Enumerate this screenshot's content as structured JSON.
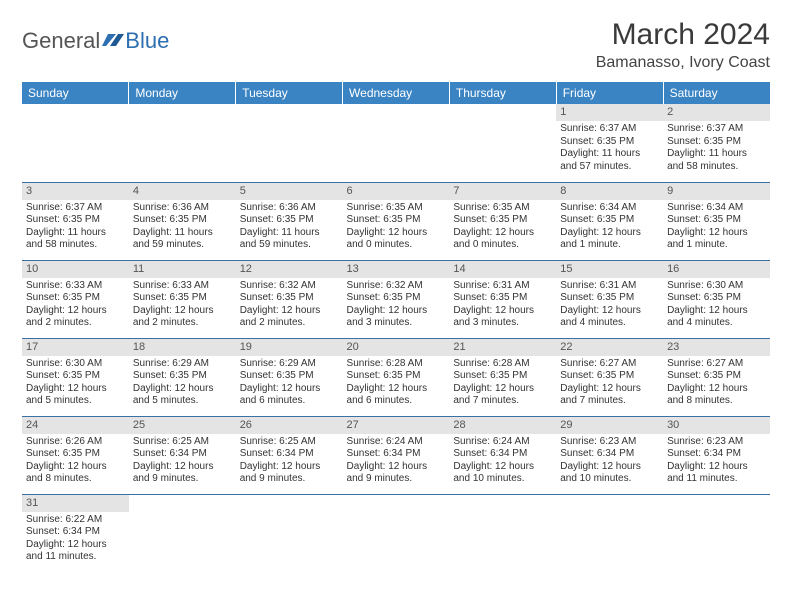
{
  "logo": {
    "general": "General",
    "blue": "Blue"
  },
  "title": "March 2024",
  "location": "Bamanasso, Ivory Coast",
  "columns": [
    "Sunday",
    "Monday",
    "Tuesday",
    "Wednesday",
    "Thursday",
    "Friday",
    "Saturday"
  ],
  "colors": {
    "header_bg": "#3b84c4",
    "header_text": "#ffffff",
    "daynum_bg": "#e4e4e4",
    "row_border": "#3b6fa8",
    "logo_blue": "#2d6fb0"
  },
  "weeks": [
    [
      null,
      null,
      null,
      null,
      null,
      {
        "n": "1",
        "sr": "Sunrise: 6:37 AM",
        "ss": "Sunset: 6:35 PM",
        "dl": "Daylight: 11 hours and 57 minutes."
      },
      {
        "n": "2",
        "sr": "Sunrise: 6:37 AM",
        "ss": "Sunset: 6:35 PM",
        "dl": "Daylight: 11 hours and 58 minutes."
      }
    ],
    [
      {
        "n": "3",
        "sr": "Sunrise: 6:37 AM",
        "ss": "Sunset: 6:35 PM",
        "dl": "Daylight: 11 hours and 58 minutes."
      },
      {
        "n": "4",
        "sr": "Sunrise: 6:36 AM",
        "ss": "Sunset: 6:35 PM",
        "dl": "Daylight: 11 hours and 59 minutes."
      },
      {
        "n": "5",
        "sr": "Sunrise: 6:36 AM",
        "ss": "Sunset: 6:35 PM",
        "dl": "Daylight: 11 hours and 59 minutes."
      },
      {
        "n": "6",
        "sr": "Sunrise: 6:35 AM",
        "ss": "Sunset: 6:35 PM",
        "dl": "Daylight: 12 hours and 0 minutes."
      },
      {
        "n": "7",
        "sr": "Sunrise: 6:35 AM",
        "ss": "Sunset: 6:35 PM",
        "dl": "Daylight: 12 hours and 0 minutes."
      },
      {
        "n": "8",
        "sr": "Sunrise: 6:34 AM",
        "ss": "Sunset: 6:35 PM",
        "dl": "Daylight: 12 hours and 1 minute."
      },
      {
        "n": "9",
        "sr": "Sunrise: 6:34 AM",
        "ss": "Sunset: 6:35 PM",
        "dl": "Daylight: 12 hours and 1 minute."
      }
    ],
    [
      {
        "n": "10",
        "sr": "Sunrise: 6:33 AM",
        "ss": "Sunset: 6:35 PM",
        "dl": "Daylight: 12 hours and 2 minutes."
      },
      {
        "n": "11",
        "sr": "Sunrise: 6:33 AM",
        "ss": "Sunset: 6:35 PM",
        "dl": "Daylight: 12 hours and 2 minutes."
      },
      {
        "n": "12",
        "sr": "Sunrise: 6:32 AM",
        "ss": "Sunset: 6:35 PM",
        "dl": "Daylight: 12 hours and 2 minutes."
      },
      {
        "n": "13",
        "sr": "Sunrise: 6:32 AM",
        "ss": "Sunset: 6:35 PM",
        "dl": "Daylight: 12 hours and 3 minutes."
      },
      {
        "n": "14",
        "sr": "Sunrise: 6:31 AM",
        "ss": "Sunset: 6:35 PM",
        "dl": "Daylight: 12 hours and 3 minutes."
      },
      {
        "n": "15",
        "sr": "Sunrise: 6:31 AM",
        "ss": "Sunset: 6:35 PM",
        "dl": "Daylight: 12 hours and 4 minutes."
      },
      {
        "n": "16",
        "sr": "Sunrise: 6:30 AM",
        "ss": "Sunset: 6:35 PM",
        "dl": "Daylight: 12 hours and 4 minutes."
      }
    ],
    [
      {
        "n": "17",
        "sr": "Sunrise: 6:30 AM",
        "ss": "Sunset: 6:35 PM",
        "dl": "Daylight: 12 hours and 5 minutes."
      },
      {
        "n": "18",
        "sr": "Sunrise: 6:29 AM",
        "ss": "Sunset: 6:35 PM",
        "dl": "Daylight: 12 hours and 5 minutes."
      },
      {
        "n": "19",
        "sr": "Sunrise: 6:29 AM",
        "ss": "Sunset: 6:35 PM",
        "dl": "Daylight: 12 hours and 6 minutes."
      },
      {
        "n": "20",
        "sr": "Sunrise: 6:28 AM",
        "ss": "Sunset: 6:35 PM",
        "dl": "Daylight: 12 hours and 6 minutes."
      },
      {
        "n": "21",
        "sr": "Sunrise: 6:28 AM",
        "ss": "Sunset: 6:35 PM",
        "dl": "Daylight: 12 hours and 7 minutes."
      },
      {
        "n": "22",
        "sr": "Sunrise: 6:27 AM",
        "ss": "Sunset: 6:35 PM",
        "dl": "Daylight: 12 hours and 7 minutes."
      },
      {
        "n": "23",
        "sr": "Sunrise: 6:27 AM",
        "ss": "Sunset: 6:35 PM",
        "dl": "Daylight: 12 hours and 8 minutes."
      }
    ],
    [
      {
        "n": "24",
        "sr": "Sunrise: 6:26 AM",
        "ss": "Sunset: 6:35 PM",
        "dl": "Daylight: 12 hours and 8 minutes."
      },
      {
        "n": "25",
        "sr": "Sunrise: 6:25 AM",
        "ss": "Sunset: 6:34 PM",
        "dl": "Daylight: 12 hours and 9 minutes."
      },
      {
        "n": "26",
        "sr": "Sunrise: 6:25 AM",
        "ss": "Sunset: 6:34 PM",
        "dl": "Daylight: 12 hours and 9 minutes."
      },
      {
        "n": "27",
        "sr": "Sunrise: 6:24 AM",
        "ss": "Sunset: 6:34 PM",
        "dl": "Daylight: 12 hours and 9 minutes."
      },
      {
        "n": "28",
        "sr": "Sunrise: 6:24 AM",
        "ss": "Sunset: 6:34 PM",
        "dl": "Daylight: 12 hours and 10 minutes."
      },
      {
        "n": "29",
        "sr": "Sunrise: 6:23 AM",
        "ss": "Sunset: 6:34 PM",
        "dl": "Daylight: 12 hours and 10 minutes."
      },
      {
        "n": "30",
        "sr": "Sunrise: 6:23 AM",
        "ss": "Sunset: 6:34 PM",
        "dl": "Daylight: 12 hours and 11 minutes."
      }
    ],
    [
      {
        "n": "31",
        "sr": "Sunrise: 6:22 AM",
        "ss": "Sunset: 6:34 PM",
        "dl": "Daylight: 12 hours and 11 minutes."
      },
      null,
      null,
      null,
      null,
      null,
      null
    ]
  ]
}
